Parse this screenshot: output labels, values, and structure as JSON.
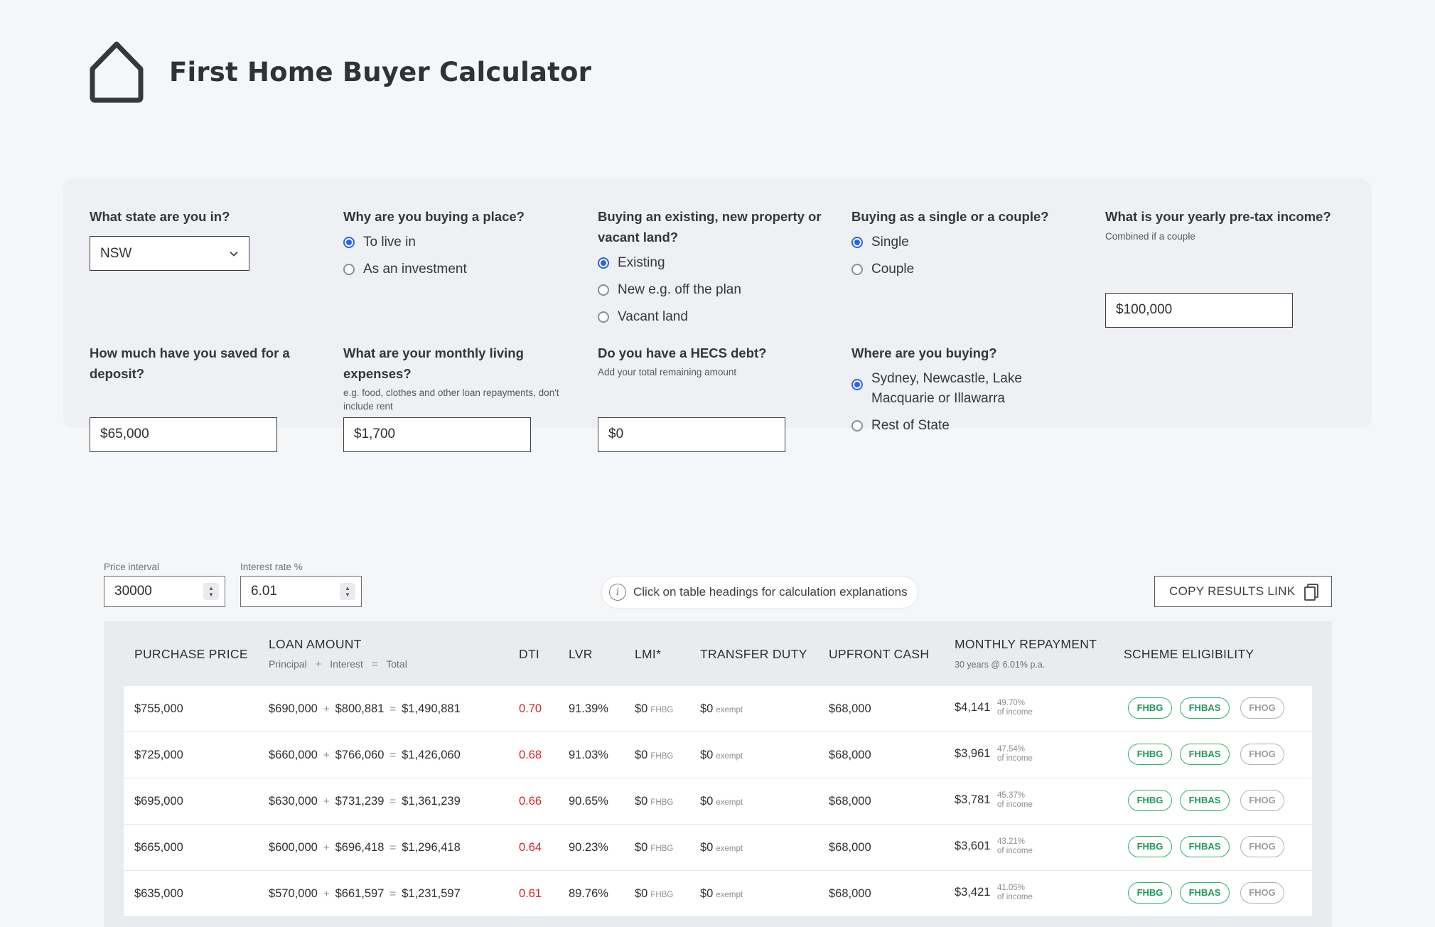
{
  "app": {
    "title": "First Home Buyer Calculator"
  },
  "form": {
    "state": {
      "question": "What state are you in?",
      "value": "NSW"
    },
    "purpose": {
      "question": "Why are you buying a place?",
      "options": [
        "To live in",
        "As an investment"
      ],
      "selected": 0
    },
    "property_type": {
      "question": "Buying an existing, new property or vacant land?",
      "options": [
        "Existing",
        "New e.g. off the plan",
        "Vacant land"
      ],
      "selected": 0
    },
    "single_couple": {
      "question": "Buying as a single or a couple?",
      "options": [
        "Single",
        "Couple"
      ],
      "selected": 0
    },
    "income": {
      "question": "What is your yearly pre-tax income?",
      "hint": "Combined if a couple",
      "value": "$100,000"
    },
    "deposit": {
      "question": "How much have you saved for a deposit?",
      "value": "$65,000"
    },
    "expenses": {
      "question": "What are your monthly living expenses?",
      "hint": "e.g. food, clothes and other loan repayments, don't include rent",
      "value": "$1,700"
    },
    "hecs": {
      "question": "Do you have a HECS debt?",
      "hint": "Add your total remaining amount",
      "value": "$0"
    },
    "location": {
      "question": "Where are you buying?",
      "options": [
        "Sydney, Newcastle, Lake Macquarie or Illawarra",
        "Rest of State"
      ],
      "selected": 0
    }
  },
  "controls": {
    "price_interval_label": "Price interval",
    "price_interval_value": "30000",
    "interest_label": "Interest rate %",
    "interest_value": "6.01",
    "info_text": "Click on table headings for calculation explanations",
    "copy_label": "COPY RESULTS LINK"
  },
  "table": {
    "headers": {
      "purchase_price": "PURCHASE PRICE",
      "loan_amount": "LOAN AMOUNT",
      "loan_sub_principal": "Principal",
      "loan_sub_plus": "+",
      "loan_sub_interest": "Interest",
      "loan_sub_eq": "=",
      "loan_sub_total": "Total",
      "dti": "DTI",
      "lvr": "LVR",
      "lmi": "LMI*",
      "transfer_duty": "TRANSFER DUTY",
      "upfront_cash": "UPFRONT CASH",
      "monthly_repayment": "MONTHLY REPAYMENT",
      "monthly_sub": "30 years @ 6.01% p.a.",
      "scheme": "SCHEME ELIGIBILITY"
    },
    "rows": [
      {
        "price": "$755,000",
        "principal": "$690,000",
        "interest": "$800,881",
        "total": "$1,490,881",
        "dti": "0.70",
        "lvr": "91.39%",
        "lmi": "$0",
        "lmi_note": "FHBG",
        "duty": "$0",
        "duty_note": "exempt",
        "upfront": "$68,000",
        "repay": "$4,141",
        "repay_pct": "49.70%",
        "repay_pct_note": "of income",
        "schemes": [
          "FHBG",
          "FHBAS",
          "FHOG"
        ]
      },
      {
        "price": "$725,000",
        "principal": "$660,000",
        "interest": "$766,060",
        "total": "$1,426,060",
        "dti": "0.68",
        "lvr": "91.03%",
        "lmi": "$0",
        "lmi_note": "FHBG",
        "duty": "$0",
        "duty_note": "exempt",
        "upfront": "$68,000",
        "repay": "$3,961",
        "repay_pct": "47.54%",
        "repay_pct_note": "of income",
        "schemes": [
          "FHBG",
          "FHBAS",
          "FHOG"
        ]
      },
      {
        "price": "$695,000",
        "principal": "$630,000",
        "interest": "$731,239",
        "total": "$1,361,239",
        "dti": "0.66",
        "lvr": "90.65%",
        "lmi": "$0",
        "lmi_note": "FHBG",
        "duty": "$0",
        "duty_note": "exempt",
        "upfront": "$68,000",
        "repay": "$3,781",
        "repay_pct": "45.37%",
        "repay_pct_note": "of income",
        "schemes": [
          "FHBG",
          "FHBAS",
          "FHOG"
        ]
      },
      {
        "price": "$665,000",
        "principal": "$600,000",
        "interest": "$696,418",
        "total": "$1,296,418",
        "dti": "0.64",
        "lvr": "90.23%",
        "lmi": "$0",
        "lmi_note": "FHBG",
        "duty": "$0",
        "duty_note": "exempt",
        "upfront": "$68,000",
        "repay": "$3,601",
        "repay_pct": "43.21%",
        "repay_pct_note": "of income",
        "schemes": [
          "FHBG",
          "FHBAS",
          "FHOG"
        ]
      },
      {
        "price": "$635,000",
        "principal": "$570,000",
        "interest": "$661,597",
        "total": "$1,231,597",
        "dti": "0.61",
        "lvr": "89.76%",
        "lmi": "$0",
        "lmi_note": "FHBG",
        "duty": "$0",
        "duty_note": "exempt",
        "upfront": "$68,000",
        "repay": "$3,421",
        "repay_pct": "41.05%",
        "repay_pct_note": "of income",
        "schemes": [
          "FHBG",
          "FHBAS",
          "FHOG"
        ]
      }
    ],
    "eligible_schemes": [
      "FHBG",
      "FHBAS"
    ],
    "colors": {
      "eligible": "#21995a",
      "ineligible": "#9a9ea2",
      "dti_warning": "#d4262c"
    }
  }
}
